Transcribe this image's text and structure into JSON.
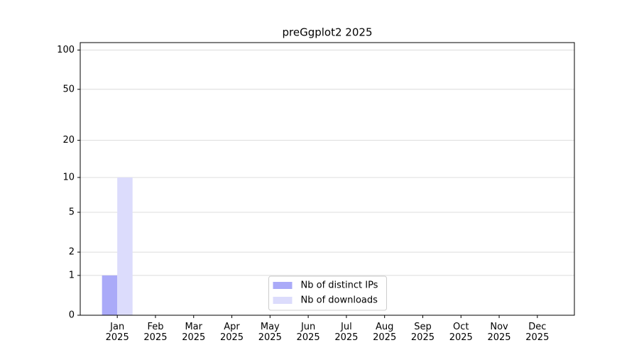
{
  "chart_data": {
    "type": "bar",
    "title": "preGgplot2 2025",
    "categories": [
      "Jan 2025",
      "Feb 2025",
      "Mar 2025",
      "Apr 2025",
      "May 2025",
      "Jun 2025",
      "Jul 2025",
      "Aug 2025",
      "Sep 2025",
      "Oct 2025",
      "Nov 2025",
      "Dec 2025"
    ],
    "series": [
      {
        "name": "Nb of distinct IPs",
        "color": "#aaaaf8",
        "values": [
          1,
          0,
          0,
          0,
          0,
          0,
          0,
          0,
          0,
          0,
          0,
          0
        ]
      },
      {
        "name": "Nb of downloads",
        "color": "#dcdcfc",
        "values": [
          10,
          0,
          0,
          0,
          0,
          0,
          0,
          0,
          0,
          0,
          0,
          0
        ]
      }
    ],
    "yscale": "log1p",
    "ylim": [
      0,
      114
    ],
    "yticks": [
      0,
      1,
      2,
      5,
      10,
      20,
      50,
      100
    ],
    "grid": true,
    "legend": "lower center"
  }
}
